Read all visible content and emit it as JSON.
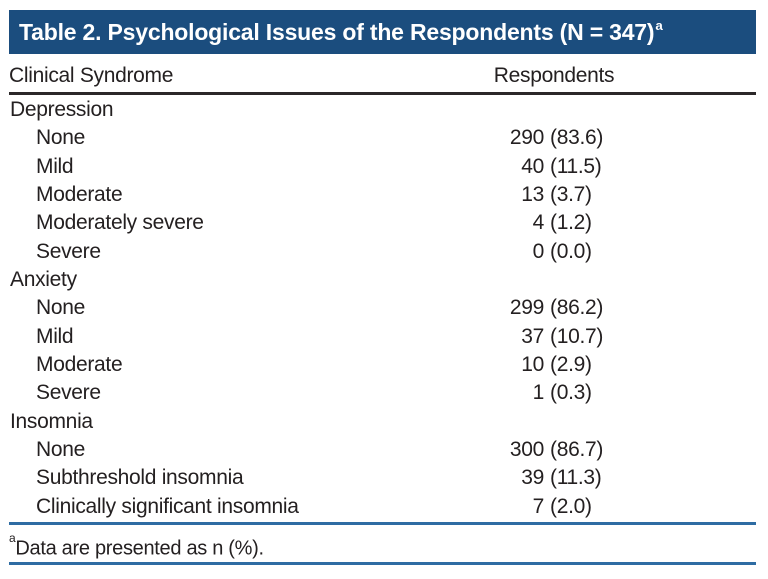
{
  "table": {
    "title": "Table 2. Psychological Issues of the Respondents (N = 347)",
    "title_superscript": "a",
    "columns": {
      "syndrome": "Clinical Syndrome",
      "respondents": "Respondents"
    },
    "rows": [
      {
        "label": "Depression",
        "level": 0,
        "count": null,
        "percent": null
      },
      {
        "label": "None",
        "level": 1,
        "count": "290",
        "percent": "(83.6)"
      },
      {
        "label": "Mild",
        "level": 1,
        "count": "40",
        "percent": "(11.5)"
      },
      {
        "label": "Moderate",
        "level": 1,
        "count": "13",
        "percent": "(3.7)"
      },
      {
        "label": "Moderately severe",
        "level": 1,
        "count": "4",
        "percent": "(1.2)"
      },
      {
        "label": "Severe",
        "level": 1,
        "count": "0",
        "percent": "(0.0)"
      },
      {
        "label": "Anxiety",
        "level": 0,
        "count": null,
        "percent": null
      },
      {
        "label": "None",
        "level": 1,
        "count": "299",
        "percent": "(86.2)"
      },
      {
        "label": "Mild",
        "level": 1,
        "count": "37",
        "percent": "(10.7)"
      },
      {
        "label": "Moderate",
        "level": 1,
        "count": "10",
        "percent": "(2.9)"
      },
      {
        "label": "Severe",
        "level": 1,
        "count": "1",
        "percent": "(0.3)"
      },
      {
        "label": "Insomnia",
        "level": 0,
        "count": null,
        "percent": null
      },
      {
        "label": "None",
        "level": 1,
        "count": "300",
        "percent": "(86.7)"
      },
      {
        "label": "Subthreshold insomnia",
        "level": 1,
        "count": "39",
        "percent": "(11.3)"
      },
      {
        "label": "Clinically significant insomnia",
        "level": 1,
        "count": "7",
        "percent": "(2.0)"
      }
    ],
    "footnote": {
      "superscript": "a",
      "text": "Data are presented as n (%)."
    }
  },
  "colors": {
    "header_bg": "#1b4d7e",
    "title_text": "#ffffff",
    "rule_blue": "#2e6ca3",
    "rule_dark": "#2b2829",
    "text": "#242021",
    "page_bg": "#ffffff"
  }
}
